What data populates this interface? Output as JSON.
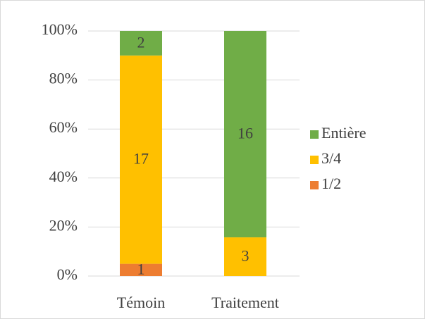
{
  "chart_data": {
    "type": "bar",
    "stacked": "percent",
    "categories": [
      "Témoin",
      "Traitement"
    ],
    "series": [
      {
        "name": "1/2",
        "color": "#ed7d31",
        "values": [
          1,
          null
        ]
      },
      {
        "name": "3/4",
        "color": "#ffc000",
        "values": [
          17,
          3
        ]
      },
      {
        "name": "Entière",
        "color": "#70ad47",
        "values": [
          2,
          16
        ]
      }
    ],
    "ylim": [
      0,
      100
    ],
    "yticks": [
      {
        "value": 0,
        "label": "0%"
      },
      {
        "value": 20,
        "label": "20%"
      },
      {
        "value": 40,
        "label": "40%"
      },
      {
        "value": 60,
        "label": "60%"
      },
      {
        "value": 80,
        "label": "80%"
      },
      {
        "value": 100,
        "label": "100%"
      }
    ],
    "grid": true,
    "legend": "right"
  }
}
